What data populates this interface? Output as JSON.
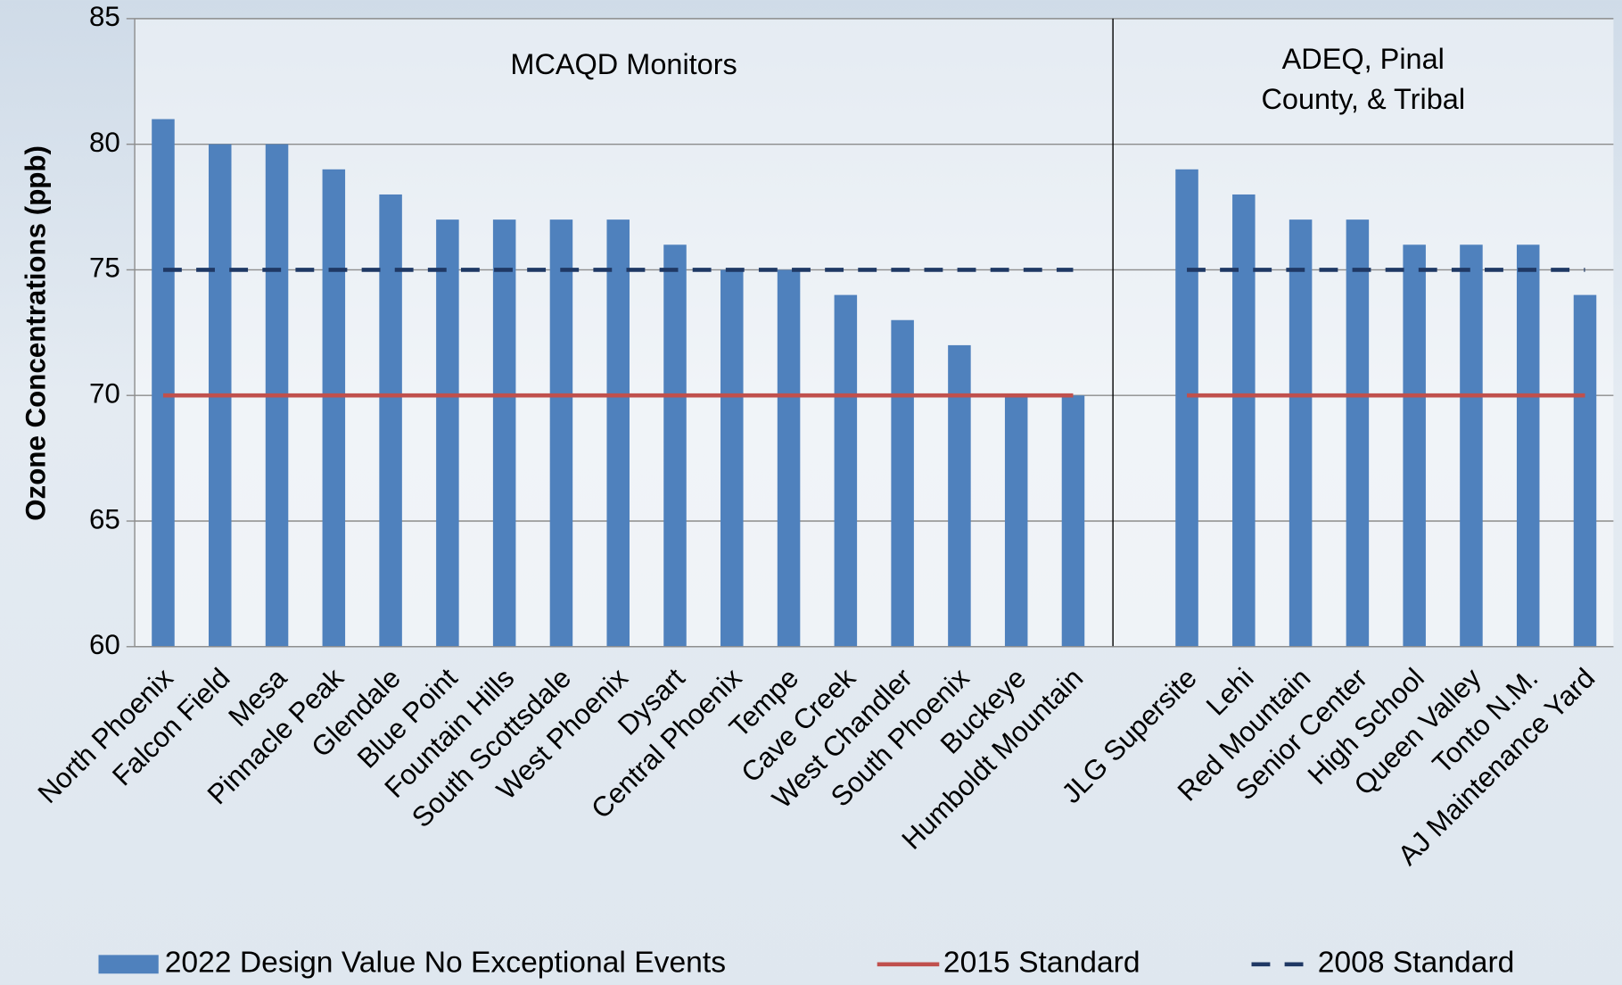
{
  "chart_data": {
    "type": "bar",
    "y_label": "Ozone Concentrations (ppb)",
    "annotations": [
      {
        "lines": [
          "MCAQD Monitors"
        ]
      },
      {
        "lines": [
          "ADEQ, Pinal",
          "County, & Tribal"
        ]
      }
    ],
    "categories": [
      "North Phoenix",
      "Falcon Field",
      "Mesa",
      "Pinnacle Peak",
      "Glendale",
      "Blue Point",
      "Fountain Hills",
      "South Scottsdale",
      "West Phoenix",
      "Dysart",
      "Central Phoenix",
      "Tempe",
      "Cave Creek",
      "West Chandler",
      "South Phoenix",
      "Buckeye",
      "Humboldt Mountain",
      null,
      "JLG Supersite",
      "Lehi",
      "Red Mountain",
      "Senior Center",
      "High School",
      "Queen Valley",
      "Tonto N.M.",
      "AJ Maintenance Yard"
    ],
    "series": [
      {
        "name": "2022 Design Value No Exceptional Events",
        "type": "bar",
        "color": "#4f81bd",
        "values": [
          81,
          80,
          80,
          79,
          78,
          77,
          77,
          77,
          77,
          76,
          75,
          75,
          74,
          73,
          72,
          70,
          70,
          null,
          79,
          78,
          77,
          77,
          76,
          76,
          76,
          74
        ]
      },
      {
        "name": "2015 Standard",
        "type": "line",
        "color": "#c0504d",
        "dash": false,
        "values": [
          70,
          70,
          70,
          70,
          70,
          70,
          70,
          70,
          70,
          70,
          70,
          70,
          70,
          70,
          70,
          70,
          70,
          null,
          70,
          70,
          70,
          70,
          70,
          70,
          70,
          70
        ]
      },
      {
        "name": "2008 Standard",
        "type": "line",
        "color": "#1f3864",
        "dash": true,
        "values": [
          75,
          75,
          75,
          75,
          75,
          75,
          75,
          75,
          75,
          75,
          75,
          75,
          75,
          75,
          75,
          75,
          75,
          null,
          75,
          75,
          75,
          75,
          75,
          75,
          75,
          75
        ]
      }
    ],
    "ylim": [
      60,
      85
    ],
    "yticks": [
      60,
      65,
      70,
      75,
      80,
      85
    ],
    "grid": true,
    "legend": "bottom"
  }
}
